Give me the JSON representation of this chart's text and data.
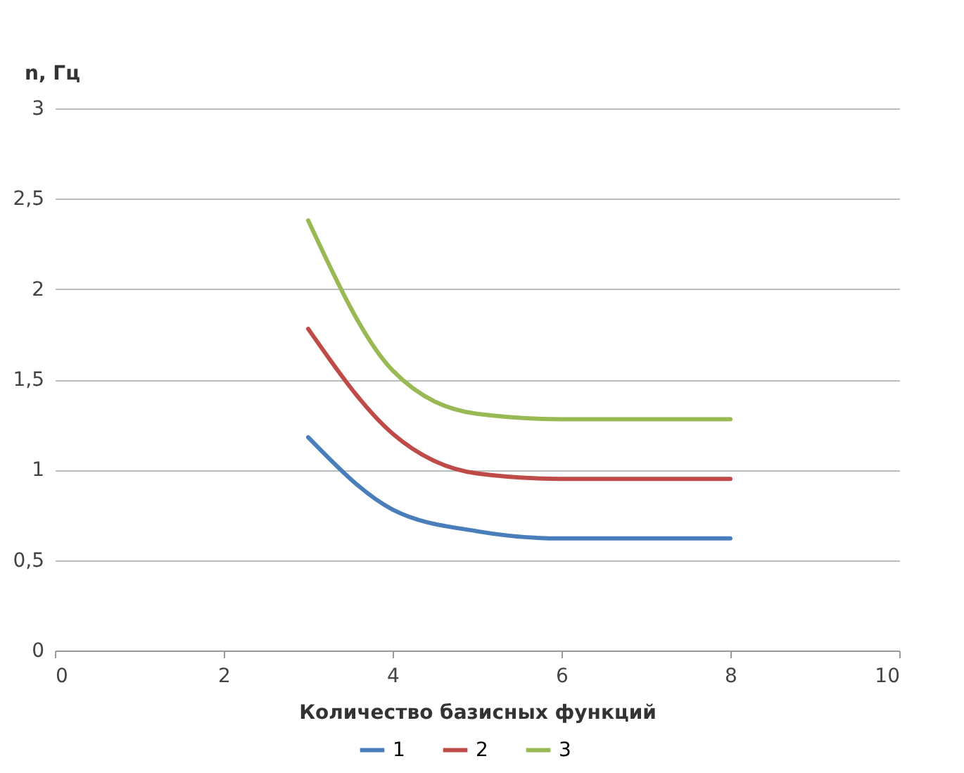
{
  "chart_data": {
    "type": "line",
    "xlabel": "Количество  базисных  функций",
    "ylabel": "n, Гц",
    "x": [
      3,
      4,
      5,
      6,
      7,
      8
    ],
    "series": [
      {
        "name": "1",
        "color": "#4a7ebb",
        "values": [
          1.18,
          0.78,
          0.66,
          0.62,
          0.62,
          0.62
        ]
      },
      {
        "name": "2",
        "color": "#be4b48",
        "values": [
          1.78,
          1.2,
          0.98,
          0.95,
          0.95,
          0.95
        ]
      },
      {
        "name": "3",
        "color": "#98b954",
        "values": [
          2.38,
          1.55,
          1.31,
          1.28,
          1.28,
          1.28
        ]
      }
    ],
    "xlim": [
      0,
      10
    ],
    "xticks": [
      0,
      2,
      4,
      6,
      8,
      10
    ],
    "ylim": [
      0,
      3
    ],
    "yticks": [
      "0",
      {
        "value": 0.5,
        "label": "0,5"
      },
      1,
      {
        "value": 1.5,
        "label": "1,5"
      },
      2,
      {
        "value": 2.5,
        "label": "2,5"
      },
      3
    ],
    "grid": "y",
    "legend": "bottom",
    "marker": "none",
    "line_style": "solid"
  }
}
